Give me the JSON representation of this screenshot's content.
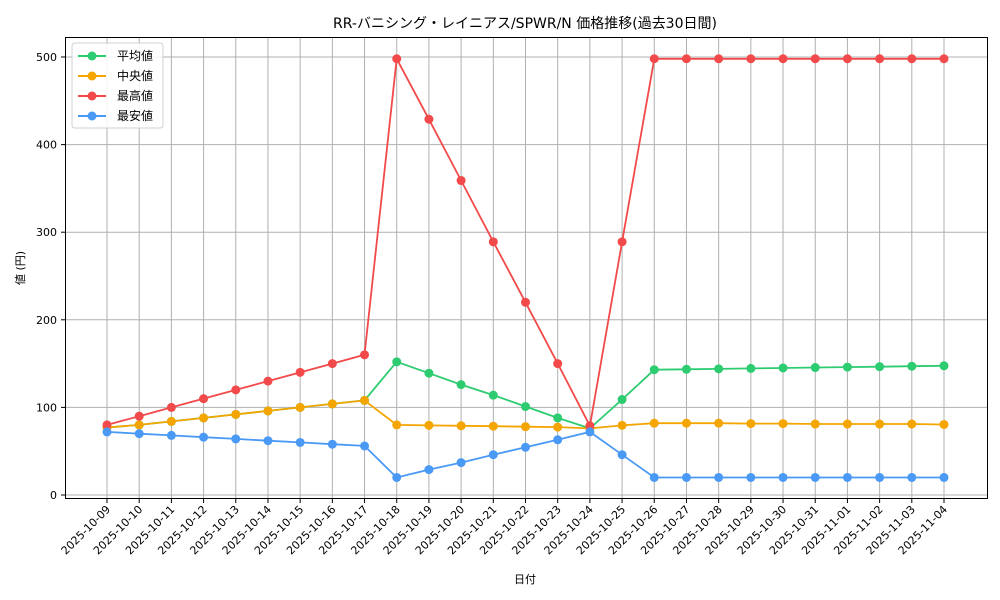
{
  "chart_data": {
    "type": "line",
    "title": "RR-バニシング・レイニアス/SPWR/N 価格推移(過去30日間)",
    "xlabel": "日付",
    "ylabel": "値 (円)",
    "ylim": [
      0,
      520
    ],
    "yticks": [
      0,
      100,
      200,
      300,
      400,
      500
    ],
    "grid": true,
    "legend_position": "upper left",
    "categories": [
      "2025-10-09",
      "2025-10-10",
      "2025-10-11",
      "2025-10-12",
      "2025-10-13",
      "2025-10-14",
      "2025-10-15",
      "2025-10-16",
      "2025-10-17",
      "2025-10-18",
      "2025-10-19",
      "2025-10-20",
      "2025-10-21",
      "2025-10-22",
      "2025-10-23",
      "2025-10-24",
      "2025-10-25",
      "2025-10-26",
      "2025-10-27",
      "2025-10-28",
      "2025-10-29",
      "2025-10-30",
      "2025-10-31",
      "2025-11-01",
      "2025-11-02",
      "2025-11-03",
      "2025-11-04"
    ],
    "series": [
      {
        "name": "平均値",
        "color": "#2ecc71",
        "values": [
          77,
          80,
          84,
          88,
          92,
          96,
          100,
          104,
          108,
          152,
          139,
          126,
          114,
          101,
          88,
          76,
          109,
          143,
          143.5,
          144,
          144.5,
          145,
          145.5,
          146,
          146.5,
          147,
          147.5
        ]
      },
      {
        "name": "中央値",
        "color": "#f5a500",
        "values": [
          77,
          80,
          84,
          88,
          92,
          96,
          100,
          104,
          108,
          80,
          79.5,
          79,
          78.5,
          78,
          77.5,
          76,
          79.5,
          82,
          82,
          82,
          81.5,
          81.5,
          81,
          81,
          81,
          81,
          80.5
        ]
      },
      {
        "name": "最高値",
        "color": "#f24a4a",
        "values": [
          80,
          90,
          100,
          110,
          120,
          130,
          140,
          150,
          160,
          498,
          429,
          359,
          289,
          220,
          150,
          79,
          289,
          498,
          498,
          498,
          498,
          498,
          498,
          498,
          498,
          498,
          498
        ]
      },
      {
        "name": "最安値",
        "color": "#4a9af5",
        "values": [
          72,
          70,
          68,
          66,
          64,
          62,
          60,
          58,
          56,
          20,
          29,
          37,
          46,
          54.5,
          63,
          72,
          46,
          20,
          20,
          20,
          20,
          20,
          20,
          20,
          20,
          20,
          20
        ]
      }
    ]
  }
}
